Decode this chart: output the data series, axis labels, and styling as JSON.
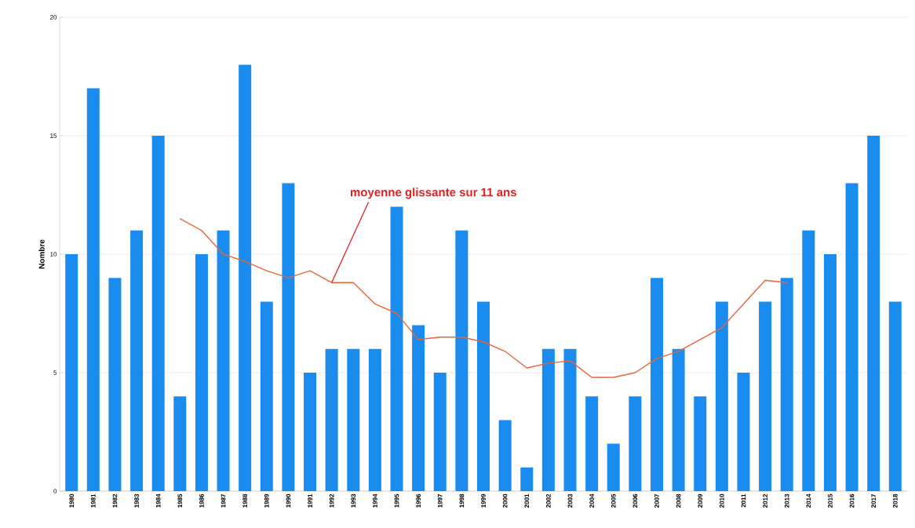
{
  "chart_data": {
    "type": "bar",
    "ylabel": "Nombre",
    "categories": [
      "1980",
      "1981",
      "1982",
      "1983",
      "1984",
      "1985",
      "1986",
      "1987",
      "1988",
      "1989",
      "1990",
      "1991",
      "1992",
      "1993",
      "1994",
      "1995",
      "1996",
      "1997",
      "1998",
      "1999",
      "2000",
      "2001",
      "2002",
      "2003",
      "2004",
      "2005",
      "2006",
      "2007",
      "2008",
      "2009",
      "2010",
      "2011",
      "2012",
      "2013",
      "2014",
      "2015",
      "2016",
      "2017",
      "2018"
    ],
    "series": [
      {
        "color": "#1a8cf0",
        "values": [
          10,
          17,
          9,
          11,
          15,
          4,
          10,
          11,
          18,
          8,
          13,
          5,
          6,
          6,
          6,
          12,
          7,
          5,
          11,
          8,
          3,
          1,
          6,
          6,
          4,
          2,
          4,
          9,
          6,
          4,
          8,
          5,
          8,
          9,
          11,
          10,
          13,
          15,
          8
        ]
      },
      {
        "type": "line",
        "color": "#ec6435",
        "values": [
          null,
          null,
          null,
          null,
          null,
          11.5,
          11.0,
          10.0,
          9.7,
          9.3,
          9.0,
          9.3,
          8.8,
          8.8,
          7.9,
          7.5,
          6.4,
          6.5,
          6.5,
          6.3,
          5.9,
          5.2,
          5.4,
          5.5,
          4.8,
          4.8,
          5.0,
          5.6,
          5.9,
          6.4,
          6.9,
          7.9,
          8.9,
          8.8,
          null,
          null,
          null,
          null,
          null
        ]
      }
    ],
    "ylim": [
      0,
      20
    ],
    "yticks": [
      0,
      5,
      10,
      15,
      20
    ],
    "grid": "y",
    "annotations": [
      {
        "text": "moyenne glissante sur 11 ans",
        "x": "1992",
        "y": 8.8
      }
    ]
  }
}
